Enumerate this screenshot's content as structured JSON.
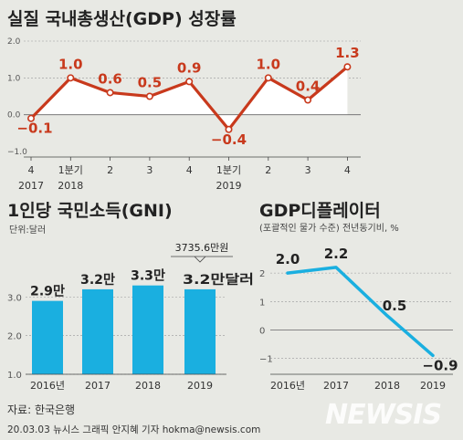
{
  "chart_data": [
    {
      "type": "area",
      "title": "실질 국내총생산(GDP) 성장률",
      "quarter_labels": [
        "4",
        "1분기",
        "2",
        "3",
        "4",
        "1분기",
        "2",
        "3",
        "4"
      ],
      "year_labels": [
        "2017",
        "2018",
        "",
        "",
        "",
        "2019",
        "",
        "",
        ""
      ],
      "values": [
        -0.1,
        1.0,
        0.6,
        0.5,
        0.9,
        -0.4,
        1.0,
        0.4,
        1.3
      ],
      "value_labels": [
        "−0.1",
        "1.0",
        "0.6",
        "0.5",
        "0.9",
        "−0.4",
        "1.0",
        "0.4",
        "1.3"
      ],
      "yticks": [
        2.0,
        1.0,
        0.0,
        -1.0
      ],
      "ytick_labels": [
        "2.0",
        "1.0",
        "0.0",
        "−1.0"
      ],
      "ylim": [
        -1.0,
        2.0
      ],
      "colors": {
        "line": "#c8391c",
        "fill": "#ffffff",
        "highlight": "#c8391c"
      }
    },
    {
      "type": "bar",
      "title": "1인당 국민소득(GNI)",
      "unit": "단위:달러",
      "categories": [
        "2016년",
        "2017",
        "2018",
        "2019"
      ],
      "values": [
        2.9,
        3.2,
        3.3,
        3.2
      ],
      "value_labels": [
        "2.9만",
        "3.2만",
        "3.3만",
        "3.2만달러"
      ],
      "callout": "3735.6만원",
      "yticks": [
        3.0,
        2.0,
        1.0
      ],
      "ytick_labels": [
        "3.0",
        "2.0",
        "1.0"
      ],
      "ylim": [
        1.0,
        3.6
      ],
      "colors": {
        "bar": "#1aafe0"
      }
    },
    {
      "type": "line",
      "title": "GDP디플레이터",
      "subtitle": "(포괄적인 물가 수준) 전년동기비, %",
      "categories": [
        "2016년",
        "2017",
        "2018",
        "2019"
      ],
      "values": [
        2.0,
        2.2,
        0.5,
        -0.9
      ],
      "value_labels": [
        "2.0",
        "2.2",
        "0.5",
        "−0.9"
      ],
      "yticks": [
        2,
        1,
        0,
        -1
      ],
      "ytick_labels": [
        "2",
        "1",
        "0",
        "−1"
      ],
      "ylim": [
        -1.4,
        3.0
      ],
      "colors": {
        "line": "#1aafe0"
      }
    }
  ],
  "footer": {
    "source": "자료: 한국은행",
    "credit": "20.03.03  뉴시스 그래픽 안지혜 기자  hokma@newsis.com",
    "watermark": "NEWSIS"
  }
}
